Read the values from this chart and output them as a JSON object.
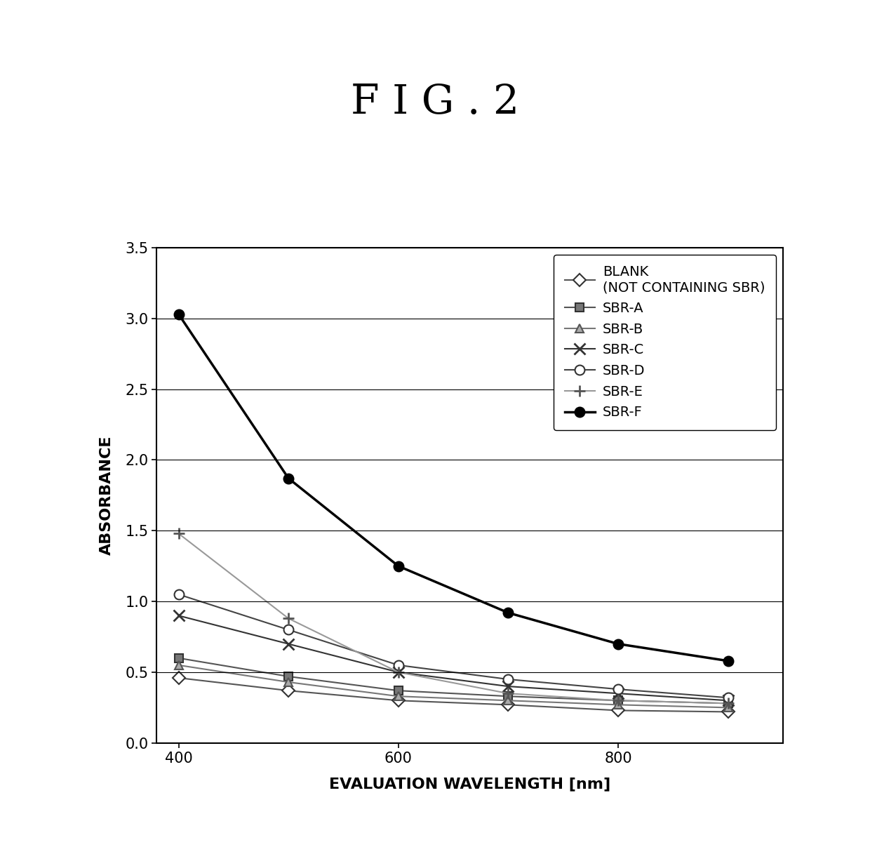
{
  "title": "F I G . 2",
  "xlabel": "EVALUATION WAVELENGTH [nm]",
  "ylabel": "ABSORBANCE",
  "xlim": [
    380,
    950
  ],
  "ylim": [
    0.0,
    3.5
  ],
  "xticks": [
    400,
    600,
    800
  ],
  "yticks": [
    0.0,
    0.5,
    1.0,
    1.5,
    2.0,
    2.5,
    3.0,
    3.5
  ],
  "x_points": [
    400,
    500,
    600,
    700,
    800,
    900
  ],
  "series": [
    {
      "label": "BLANK\n(NOT CONTAINING SBR)",
      "color": "#555555",
      "linewidth": 1.5,
      "marker": "D",
      "markersize": 9,
      "markerfacecolor": "white",
      "markeredgecolor": "#333333",
      "markeredgewidth": 1.5,
      "y": [
        0.46,
        0.37,
        0.3,
        0.27,
        0.23,
        0.22
      ]
    },
    {
      "label": "SBR-A",
      "color": "#555555",
      "linewidth": 1.5,
      "marker": "s",
      "markersize": 9,
      "markerfacecolor": "#777777",
      "markeredgecolor": "#333333",
      "markeredgewidth": 1.5,
      "y": [
        0.6,
        0.47,
        0.37,
        0.33,
        0.3,
        0.28
      ]
    },
    {
      "label": "SBR-B",
      "color": "#777777",
      "linewidth": 1.5,
      "marker": "^",
      "markersize": 9,
      "markerfacecolor": "#aaaaaa",
      "markeredgecolor": "#555555",
      "markeredgewidth": 1.5,
      "y": [
        0.55,
        0.43,
        0.33,
        0.3,
        0.27,
        0.25
      ]
    },
    {
      "label": "SBR-C",
      "color": "#333333",
      "linewidth": 1.5,
      "marker": "x",
      "markersize": 11,
      "markerfacecolor": "#333333",
      "markeredgecolor": "#333333",
      "markeredgewidth": 2.0,
      "y": [
        0.9,
        0.7,
        0.5,
        0.4,
        0.35,
        0.3
      ]
    },
    {
      "label": "SBR-D",
      "color": "#444444",
      "linewidth": 1.5,
      "marker": "o",
      "markersize": 10,
      "markerfacecolor": "white",
      "markeredgecolor": "#333333",
      "markeredgewidth": 1.5,
      "y": [
        1.05,
        0.8,
        0.55,
        0.45,
        0.38,
        0.32
      ]
    },
    {
      "label": "SBR-E",
      "color": "#999999",
      "linewidth": 1.5,
      "marker": "+",
      "markersize": 12,
      "markerfacecolor": "#999999",
      "markeredgecolor": "#555555",
      "markeredgewidth": 2.0,
      "y": [
        1.48,
        0.88,
        0.5,
        0.35,
        0.3,
        0.28
      ]
    },
    {
      "label": "SBR-F",
      "color": "#000000",
      "linewidth": 2.5,
      "marker": "o",
      "markersize": 10,
      "markerfacecolor": "#000000",
      "markeredgecolor": "#000000",
      "markeredgewidth": 1.5,
      "y": [
        3.03,
        1.87,
        1.25,
        0.92,
        0.7,
        0.58
      ]
    }
  ],
  "background_color": "#ffffff",
  "title_fontsize": 42,
  "axis_label_fontsize": 16,
  "tick_fontsize": 15,
  "legend_fontsize": 14
}
